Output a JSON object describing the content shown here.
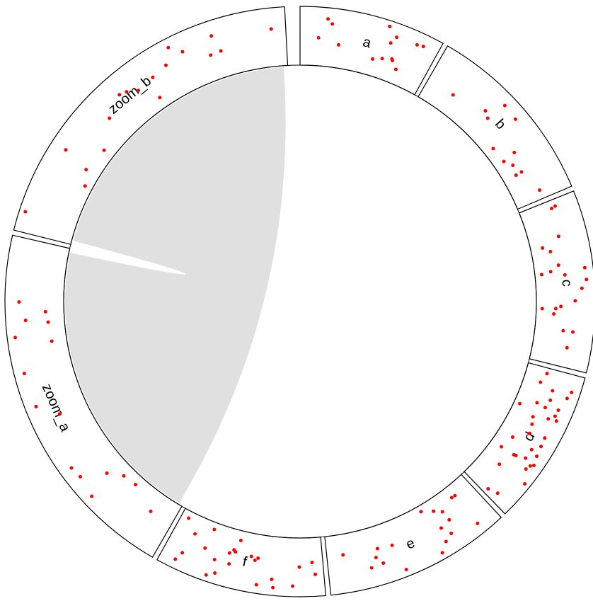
{
  "chart_data": {
    "type": "chord",
    "track": "scatter points per sector",
    "colors": {
      "points": "#ff0000",
      "link": "#e0e0e0",
      "border": "#000000",
      "background": "#ffffff"
    },
    "sectors": [
      {
        "name": "a",
        "start": 1,
        "end": 30
      },
      {
        "name": "b",
        "start": 31,
        "end": 68
      },
      {
        "name": "c",
        "start": 69,
        "end": 105
      },
      {
        "name": "d",
        "start": 106,
        "end": 137
      },
      {
        "name": "e",
        "start": 138,
        "end": 175
      },
      {
        "name": "f",
        "start": 176,
        "end": 210
      },
      {
        "name": "zoom_a",
        "start": 211,
        "end": 284
      },
      {
        "name": "zoom_b",
        "start": 285,
        "end": 358
      }
    ],
    "links": [
      {
        "from": "zoom_a",
        "to": "zoom_b"
      }
    ]
  }
}
